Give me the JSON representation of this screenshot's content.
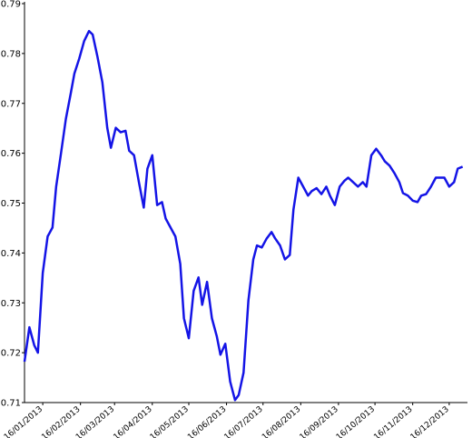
{
  "chart_data": {
    "type": "line",
    "x": [
      "2013-01-01",
      "2013-01-05",
      "2013-01-09",
      "2013-01-12",
      "2013-01-16",
      "2013-01-20",
      "2013-01-24",
      "2013-01-27",
      "2013-01-31",
      "2013-02-04",
      "2013-02-08",
      "2013-02-11",
      "2013-02-15",
      "2013-02-19",
      "2013-02-23",
      "2013-02-26",
      "2013-03-02",
      "2013-03-06",
      "2013-03-10",
      "2013-03-13",
      "2013-03-17",
      "2013-03-21",
      "2013-03-25",
      "2013-03-28",
      "2013-04-01",
      "2013-04-05",
      "2013-04-09",
      "2013-04-12",
      "2013-04-16",
      "2013-04-20",
      "2013-04-24",
      "2013-04-27",
      "2013-05-01",
      "2013-05-05",
      "2013-05-09",
      "2013-05-12",
      "2013-05-16",
      "2013-05-20",
      "2013-05-24",
      "2013-05-27",
      "2013-05-31",
      "2013-06-04",
      "2013-06-08",
      "2013-06-11",
      "2013-06-15",
      "2013-06-19",
      "2013-06-23",
      "2013-06-26",
      "2013-06-30",
      "2013-07-04",
      "2013-07-08",
      "2013-07-11",
      "2013-07-15",
      "2013-07-19",
      "2013-07-23",
      "2013-07-26",
      "2013-07-30",
      "2013-08-03",
      "2013-08-07",
      "2013-08-10",
      "2013-08-14",
      "2013-08-18",
      "2013-08-22",
      "2013-08-25",
      "2013-08-29",
      "2013-09-02",
      "2013-09-06",
      "2013-09-09",
      "2013-09-13",
      "2013-09-17",
      "2013-09-21",
      "2013-09-24",
      "2013-09-28",
      "2013-10-02",
      "2013-10-06",
      "2013-10-09",
      "2013-10-13",
      "2013-10-17",
      "2013-10-21",
      "2013-10-24",
      "2013-10-28",
      "2013-11-01",
      "2013-11-05",
      "2013-11-08",
      "2013-11-12",
      "2013-11-16",
      "2013-11-20",
      "2013-11-23",
      "2013-11-27",
      "2013-12-01",
      "2013-12-05",
      "2013-12-08",
      "2013-12-12",
      "2013-12-16",
      "2013-12-20",
      "2013-12-23",
      "2013-12-27"
    ],
    "series": [
      {
        "color": "#1414e6",
        "values": [
          0.7182,
          0.7251,
          0.7215,
          0.72,
          0.736,
          0.7433,
          0.7451,
          0.7533,
          0.76,
          0.7669,
          0.772,
          0.776,
          0.779,
          0.7825,
          0.7845,
          0.7838,
          0.7793,
          0.7742,
          0.7651,
          0.7611,
          0.7651,
          0.7642,
          0.7645,
          0.7605,
          0.7596,
          0.7542,
          0.7491,
          0.7569,
          0.7596,
          0.7496,
          0.7502,
          0.7469,
          0.7451,
          0.7433,
          0.7378,
          0.7269,
          0.7229,
          0.7324,
          0.7351,
          0.7296,
          0.7342,
          0.7269,
          0.7233,
          0.7196,
          0.7218,
          0.7142,
          0.7105,
          0.7115,
          0.716,
          0.7305,
          0.7387,
          0.7415,
          0.7411,
          0.7429,
          0.7442,
          0.7429,
          0.7415,
          0.7387,
          0.7396,
          0.7487,
          0.7551,
          0.7533,
          0.7515,
          0.7524,
          0.753,
          0.7518,
          0.7533,
          0.7515,
          0.7496,
          0.7533,
          0.7545,
          0.7551,
          0.7542,
          0.7533,
          0.7542,
          0.7533,
          0.7596,
          0.7609,
          0.7596,
          0.7584,
          0.7575,
          0.756,
          0.7542,
          0.752,
          0.7515,
          0.7505,
          0.7502,
          0.7515,
          0.7518,
          0.7533,
          0.7551,
          0.7551,
          0.7551,
          0.7533,
          0.7542,
          0.7569,
          0.7573
        ]
      }
    ],
    "xlim": [
      "2013-01-01",
      "2013-12-31"
    ],
    "xticks": [
      {
        "value": "2013-01-16",
        "label": "16/01/2013"
      },
      {
        "value": "2013-02-16",
        "label": "16/02/2013"
      },
      {
        "value": "2013-03-16",
        "label": "16/03/2013"
      },
      {
        "value": "2013-04-16",
        "label": "16/04/2013"
      },
      {
        "value": "2013-05-16",
        "label": "16/05/2013"
      },
      {
        "value": "2013-06-16",
        "label": "16/06/2013"
      },
      {
        "value": "2013-07-16",
        "label": "16/07/2013"
      },
      {
        "value": "2013-08-16",
        "label": "16/08/2013"
      },
      {
        "value": "2013-09-16",
        "label": "16/09/2013"
      },
      {
        "value": "2013-10-16",
        "label": "16/10/2013"
      },
      {
        "value": "2013-11-16",
        "label": "16/11/2013"
      },
      {
        "value": "2013-12-16",
        "label": "16/12/2013"
      }
    ],
    "ylim": [
      0.71,
      0.79
    ],
    "yticks": [
      0.71,
      0.72,
      0.73,
      0.74,
      0.75,
      0.76,
      0.77,
      0.78,
      0.79
    ]
  }
}
